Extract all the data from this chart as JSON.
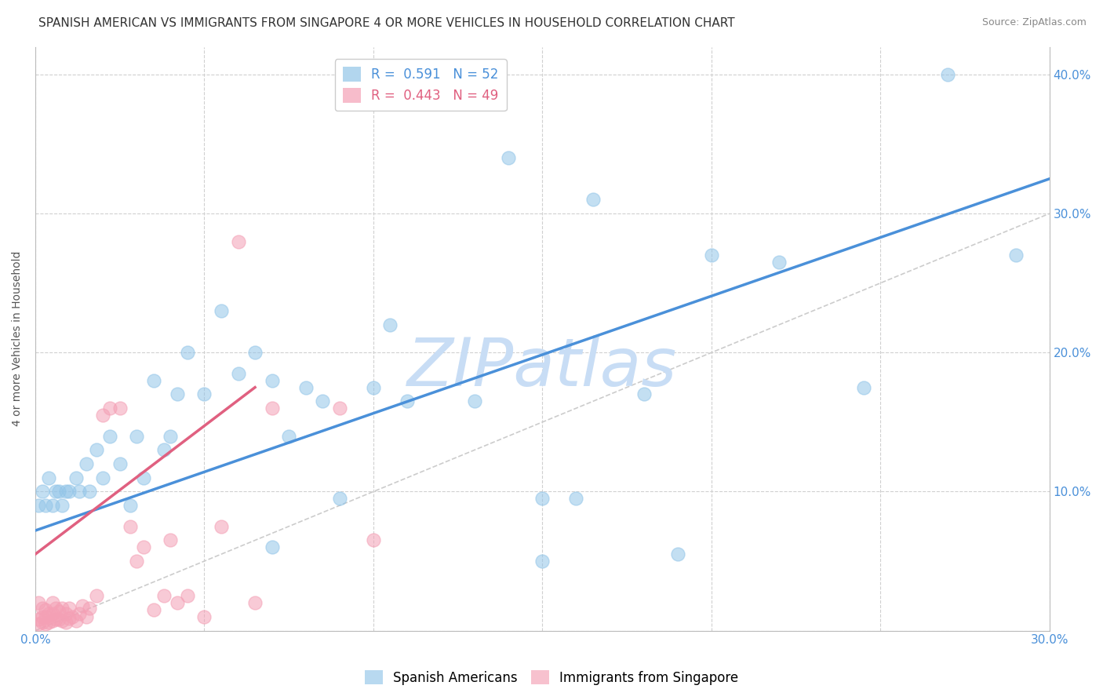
{
  "title": "SPANISH AMERICAN VS IMMIGRANTS FROM SINGAPORE 4 OR MORE VEHICLES IN HOUSEHOLD CORRELATION CHART",
  "source": "Source: ZipAtlas.com",
  "ylabel": "4 or more Vehicles in Household",
  "xlim": [
    0.0,
    0.3
  ],
  "ylim": [
    0.0,
    0.42
  ],
  "x_ticks": [
    0.0,
    0.05,
    0.1,
    0.15,
    0.2,
    0.25,
    0.3
  ],
  "x_tick_labels": [
    "0.0%",
    "",
    "",
    "",
    "",
    "",
    "30.0%"
  ],
  "y_ticks": [
    0.0,
    0.1,
    0.2,
    0.3,
    0.4
  ],
  "y_right_labels": [
    "",
    "10.0%",
    "20.0%",
    "30.0%",
    "40.0%"
  ],
  "watermark": "ZIPatlas",
  "blue_color": "#92c5e8",
  "pink_color": "#f4a0b5",
  "blue_label": "Spanish Americans",
  "pink_label": "Immigrants from Singapore",
  "blue_scatter_x": [
    0.001,
    0.002,
    0.003,
    0.004,
    0.005,
    0.006,
    0.007,
    0.008,
    0.009,
    0.01,
    0.012,
    0.013,
    0.015,
    0.016,
    0.018,
    0.02,
    0.022,
    0.025,
    0.028,
    0.03,
    0.032,
    0.035,
    0.038,
    0.04,
    0.042,
    0.045,
    0.05,
    0.055,
    0.06,
    0.065,
    0.07,
    0.075,
    0.08,
    0.085,
    0.09,
    0.1,
    0.105,
    0.11,
    0.13,
    0.14,
    0.15,
    0.16,
    0.165,
    0.18,
    0.19,
    0.2,
    0.22,
    0.245,
    0.27,
    0.29,
    0.15,
    0.07
  ],
  "blue_scatter_y": [
    0.09,
    0.1,
    0.09,
    0.11,
    0.09,
    0.1,
    0.1,
    0.09,
    0.1,
    0.1,
    0.11,
    0.1,
    0.12,
    0.1,
    0.13,
    0.11,
    0.14,
    0.12,
    0.09,
    0.14,
    0.11,
    0.18,
    0.13,
    0.14,
    0.17,
    0.2,
    0.17,
    0.23,
    0.185,
    0.2,
    0.18,
    0.14,
    0.175,
    0.165,
    0.095,
    0.175,
    0.22,
    0.165,
    0.165,
    0.34,
    0.095,
    0.095,
    0.31,
    0.17,
    0.055,
    0.27,
    0.265,
    0.175,
    0.4,
    0.27,
    0.05,
    0.06
  ],
  "pink_scatter_x": [
    0.001,
    0.001,
    0.001,
    0.002,
    0.002,
    0.002,
    0.003,
    0.003,
    0.003,
    0.004,
    0.004,
    0.005,
    0.005,
    0.005,
    0.006,
    0.006,
    0.007,
    0.007,
    0.008,
    0.008,
    0.009,
    0.009,
    0.01,
    0.01,
    0.011,
    0.012,
    0.013,
    0.014,
    0.015,
    0.016,
    0.018,
    0.02,
    0.022,
    0.025,
    0.028,
    0.03,
    0.032,
    0.035,
    0.038,
    0.04,
    0.042,
    0.045,
    0.05,
    0.055,
    0.06,
    0.065,
    0.07,
    0.09,
    0.1
  ],
  "pink_scatter_y": [
    0.005,
    0.008,
    0.02,
    0.006,
    0.01,
    0.016,
    0.005,
    0.01,
    0.015,
    0.006,
    0.012,
    0.007,
    0.012,
    0.02,
    0.008,
    0.016,
    0.008,
    0.014,
    0.007,
    0.016,
    0.006,
    0.012,
    0.009,
    0.016,
    0.01,
    0.007,
    0.012,
    0.018,
    0.01,
    0.016,
    0.025,
    0.155,
    0.16,
    0.16,
    0.075,
    0.05,
    0.06,
    0.015,
    0.025,
    0.065,
    0.02,
    0.025,
    0.01,
    0.075,
    0.28,
    0.02,
    0.16,
    0.16,
    0.065
  ],
  "blue_line_x": [
    0.0,
    0.3
  ],
  "blue_line_y": [
    0.072,
    0.325
  ],
  "pink_line_x": [
    0.0,
    0.065
  ],
  "pink_line_y": [
    0.055,
    0.175
  ],
  "diag_line_x": [
    0.0,
    0.3
  ],
  "diag_line_y": [
    0.0,
    0.3
  ],
  "background_color": "#ffffff",
  "grid_color": "#d0d0d0",
  "title_fontsize": 11,
  "source_fontsize": 9,
  "axis_fontsize": 10,
  "tick_fontsize": 11,
  "watermark_color": "#c8ddf5",
  "watermark_fontsize": 62,
  "legend_fontsize": 12
}
